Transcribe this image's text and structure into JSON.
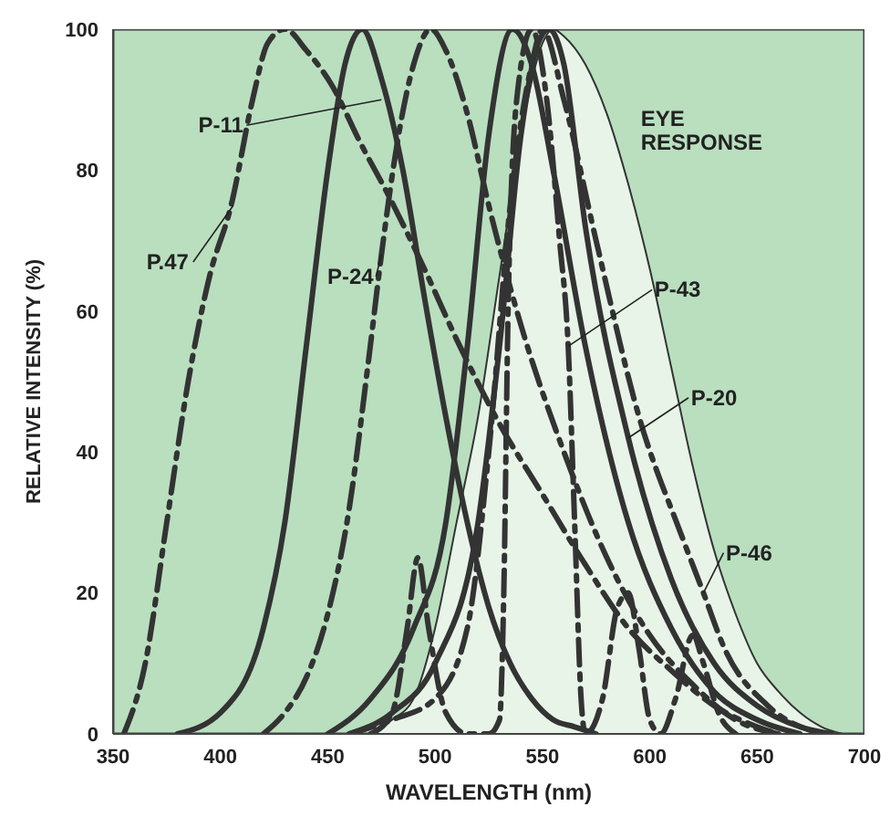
{
  "chart_data": {
    "type": "line",
    "xlabel": "WAVELENGTH (nm)",
    "ylabel": "RELATIVE INTENSITY (%)",
    "xlim": [
      350,
      700
    ],
    "xticks": [
      350,
      400,
      450,
      500,
      550,
      600,
      650,
      700
    ],
    "ylim": [
      0,
      100
    ],
    "yticks": [
      0,
      20,
      40,
      60,
      80,
      100
    ],
    "marker": "none",
    "series": [
      {
        "type": "area",
        "name": "EYE RESPONSE",
        "color": "#e8f4e8",
        "line_style": "solid",
        "x": [
          470,
          480,
          490,
          500,
          510,
          520,
          530,
          540,
          550,
          555,
          560,
          570,
          580,
          590,
          600,
          610,
          620,
          630,
          640,
          650,
          660,
          670,
          680,
          690
        ],
        "values": [
          0,
          2,
          5,
          15,
          30,
          45,
          65,
          85,
          98,
          100,
          99,
          95,
          88,
          78,
          66,
          52,
          38,
          26,
          17,
          10,
          6,
          3,
          1,
          0
        ]
      },
      {
        "color": "#333333",
        "line_style": "dashed",
        "x": [
          355,
          365,
          375,
          385,
          395,
          405,
          415,
          422,
          430,
          440,
          452,
          465,
          479,
          495,
          510,
          530,
          550,
          570,
          590,
          610,
          630,
          650,
          660
        ],
        "values": [
          0,
          10,
          30,
          50,
          65,
          75,
          90,
          98,
          100,
          97,
          92,
          84,
          76,
          66,
          56,
          44,
          34,
          24,
          15,
          9,
          4,
          1,
          0
        ]
      },
      {
        "color": "#333333",
        "line_style": "solid",
        "x": [
          380,
          400,
          420,
          430,
          440,
          450,
          458,
          466,
          475,
          485,
          495,
          505,
          515,
          525,
          535,
          545,
          555,
          565,
          575
        ],
        "values": [
          0,
          3,
          15,
          30,
          55,
          80,
          95,
          100,
          93,
          80,
          62,
          45,
          30,
          18,
          10,
          5,
          2,
          1,
          0
        ]
      },
      {
        "color": "#333333",
        "line_style": "dashed",
        "x": [
          420,
          430,
          440,
          450,
          460,
          469,
          475,
          483,
          490,
          498,
          505,
          515,
          525,
          540,
          560,
          580,
          600,
          620,
          640,
          660
        ],
        "values": [
          0,
          3,
          8,
          17,
          32,
          53,
          68,
          85,
          95,
          100,
          97,
          88,
          75,
          58,
          40,
          25,
          14,
          7,
          2,
          0
        ]
      },
      {
        "color": "#333333",
        "line_style": "solid",
        "x": [
          450,
          470,
          490,
          505,
          515,
          525,
          536,
          545,
          555,
          570,
          590,
          610,
          630,
          650,
          670
        ],
        "values": [
          0,
          5,
          15,
          30,
          55,
          85,
          100,
          95,
          80,
          55,
          30,
          15,
          6,
          2,
          0
        ]
      },
      {
        "color": "#333333",
        "line_style": "dashed",
        "x": [
          470,
          480,
          487,
          492,
          497,
          505,
          515,
          525,
          530,
          532,
          534,
          538,
          545,
          552,
          558,
          562,
          565,
          568,
          570,
          578,
          585,
          590,
          595,
          600,
          605,
          612,
          620,
          625,
          632,
          640
        ],
        "values": [
          0,
          3,
          15,
          25,
          15,
          3,
          0,
          0,
          2,
          20,
          60,
          90,
          100,
          90,
          70,
          55,
          30,
          5,
          0,
          5,
          18,
          20,
          12,
          2,
          0,
          5,
          14,
          10,
          3,
          0
        ]
      },
      {
        "color": "#333333",
        "line_style": "solid",
        "x": [
          460,
          480,
          500,
          520,
          530,
          540,
          548,
          553,
          560,
          570,
          590,
          610,
          630,
          650,
          670,
          685
        ],
        "values": [
          0,
          3,
          10,
          30,
          55,
          85,
          98,
          100,
          95,
          72,
          42,
          22,
          10,
          4,
          1,
          0
        ]
      },
      {
        "color": "#333333",
        "line_style": "dashed",
        "x": [
          460,
          480,
          500,
          515,
          525,
          535,
          545,
          550,
          560,
          575,
          595,
          615,
          625,
          635,
          655,
          680
        ],
        "values": [
          0,
          2,
          5,
          15,
          40,
          75,
          95,
          100,
          90,
          70,
          45,
          28,
          20,
          12,
          4,
          0
        ]
      }
    ],
    "annotations": [
      {
        "text": "P.47",
        "x": 406,
        "y": 75
      },
      {
        "text": "P-11",
        "x": 475,
        "y": 90
      },
      {
        "text": "P-24",
        "x": 475,
        "y": 68
      },
      {
        "text": "P-43",
        "x": 562,
        "y": 55
      },
      {
        "text": "P-20",
        "x": 590,
        "y": 42
      },
      {
        "text": "P-46",
        "x": 625,
        "y": 20
      }
    ]
  }
}
